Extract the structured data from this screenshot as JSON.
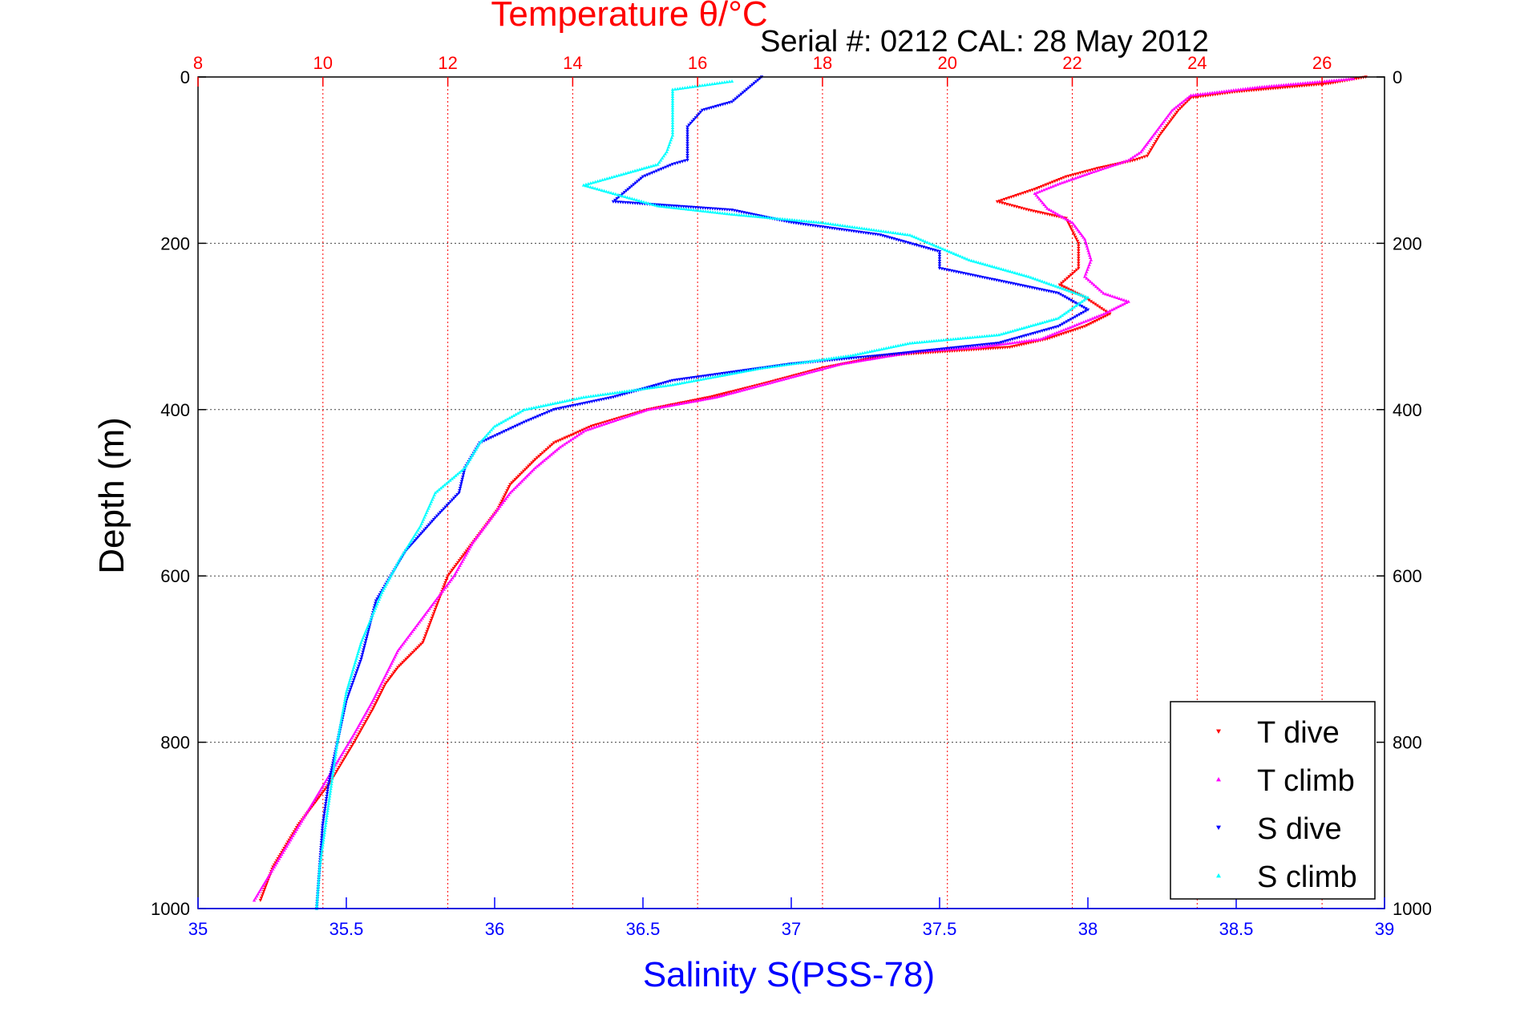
{
  "chart_data": {
    "type": "scatter",
    "title": "Temperature θ/°C",
    "subtitle": "Serial #: 0212  CAL: 28 May 2012",
    "ylabel": "Depth (m)",
    "xlabel_bottom": "Salinity S(PSS-78)",
    "xlabel_top": "Temperature θ/°C",
    "ylim": [
      0,
      1000
    ],
    "y_reversed": true,
    "xlim_bottom": [
      35,
      39
    ],
    "xlim_top": [
      8,
      27
    ],
    "yticks": [
      0,
      200,
      400,
      600,
      800,
      1000
    ],
    "xticks_bottom": [
      35,
      35.5,
      36,
      36.5,
      37,
      37.5,
      38,
      38.5,
      39
    ],
    "xticks_top": [
      8,
      10,
      12,
      14,
      16,
      18,
      20,
      22,
      24,
      26
    ],
    "grid": true,
    "legend_position": "bottom-right",
    "colors": {
      "temperature_axis": "#ff0000",
      "salinity_axis": "#0000ff",
      "t_dive": "#ff0000",
      "t_climb": "#ff00ff",
      "s_dive": "#0000ff",
      "s_climb": "#00ffff"
    },
    "series": [
      {
        "name": "T dive",
        "axis": "top",
        "marker": "triangle-down",
        "color": "#ff0000",
        "points": [
          [
            26.7,
            0
          ],
          [
            26.1,
            8
          ],
          [
            24.6,
            18
          ],
          [
            23.9,
            25
          ],
          [
            23.7,
            40
          ],
          [
            23.4,
            70
          ],
          [
            23.2,
            95
          ],
          [
            23.0,
            100
          ],
          [
            22.4,
            110
          ],
          [
            21.9,
            120
          ],
          [
            21.4,
            135
          ],
          [
            20.8,
            150
          ],
          [
            21.3,
            160
          ],
          [
            21.9,
            170
          ],
          [
            22.0,
            185
          ],
          [
            22.1,
            200
          ],
          [
            22.1,
            230
          ],
          [
            21.8,
            250
          ],
          [
            22.2,
            265
          ],
          [
            22.6,
            285
          ],
          [
            22.2,
            300
          ],
          [
            21.6,
            315
          ],
          [
            21.0,
            325
          ],
          [
            20.0,
            330
          ],
          [
            19.0,
            335
          ],
          [
            18.0,
            350
          ],
          [
            17.0,
            370
          ],
          [
            16.2,
            385
          ],
          [
            15.2,
            400
          ],
          [
            14.3,
            420
          ],
          [
            13.7,
            440
          ],
          [
            13.4,
            460
          ],
          [
            13.0,
            490
          ],
          [
            12.8,
            520
          ],
          [
            12.6,
            540
          ],
          [
            12.3,
            570
          ],
          [
            12.0,
            600
          ],
          [
            11.8,
            640
          ],
          [
            11.6,
            680
          ],
          [
            11.2,
            710
          ],
          [
            11.0,
            730
          ],
          [
            10.8,
            760
          ],
          [
            10.5,
            800
          ],
          [
            10.1,
            850
          ],
          [
            9.6,
            900
          ],
          [
            9.2,
            950
          ],
          [
            9.0,
            990
          ]
        ]
      },
      {
        "name": "T climb",
        "axis": "top",
        "marker": "triangle-up",
        "color": "#ff00ff",
        "points": [
          [
            26.5,
            2
          ],
          [
            25.0,
            12
          ],
          [
            23.9,
            22
          ],
          [
            23.6,
            40
          ],
          [
            23.3,
            70
          ],
          [
            23.1,
            90
          ],
          [
            22.9,
            100
          ],
          [
            22.3,
            115
          ],
          [
            21.8,
            128
          ],
          [
            21.4,
            140
          ],
          [
            21.6,
            158
          ],
          [
            22.0,
            175
          ],
          [
            22.2,
            195
          ],
          [
            22.3,
            220
          ],
          [
            22.2,
            240
          ],
          [
            22.5,
            260
          ],
          [
            22.9,
            270
          ],
          [
            22.5,
            285
          ],
          [
            22.0,
            300
          ],
          [
            21.5,
            315
          ],
          [
            20.5,
            325
          ],
          [
            19.5,
            330
          ],
          [
            18.3,
            345
          ],
          [
            17.3,
            365
          ],
          [
            16.3,
            385
          ],
          [
            15.2,
            400
          ],
          [
            14.2,
            425
          ],
          [
            13.8,
            445
          ],
          [
            13.4,
            470
          ],
          [
            13.0,
            500
          ],
          [
            12.6,
            540
          ],
          [
            12.4,
            560
          ],
          [
            12.1,
            600
          ],
          [
            11.8,
            630
          ],
          [
            11.5,
            660
          ],
          [
            11.2,
            690
          ],
          [
            11.0,
            720
          ],
          [
            10.8,
            750
          ],
          [
            10.5,
            790
          ],
          [
            10.1,
            840
          ],
          [
            9.7,
            890
          ],
          [
            9.3,
            940
          ],
          [
            8.9,
            990
          ]
        ]
      },
      {
        "name": "S dive",
        "axis": "bottom",
        "marker": "triangle-down",
        "color": "#0000ff",
        "points": [
          [
            36.9,
            0
          ],
          [
            36.85,
            15
          ],
          [
            36.8,
            30
          ],
          [
            36.7,
            40
          ],
          [
            36.65,
            60
          ],
          [
            36.65,
            100
          ],
          [
            36.6,
            105
          ],
          [
            36.5,
            120
          ],
          [
            36.45,
            135
          ],
          [
            36.4,
            150
          ],
          [
            36.8,
            160
          ],
          [
            37.0,
            175
          ],
          [
            37.3,
            190
          ],
          [
            37.5,
            210
          ],
          [
            37.5,
            230
          ],
          [
            37.9,
            260
          ],
          [
            38.0,
            280
          ],
          [
            37.9,
            300
          ],
          [
            37.7,
            320
          ],
          [
            37.3,
            335
          ],
          [
            37.0,
            345
          ],
          [
            36.8,
            355
          ],
          [
            36.6,
            365
          ],
          [
            36.4,
            385
          ],
          [
            36.2,
            400
          ],
          [
            36.1,
            415
          ],
          [
            35.95,
            440
          ],
          [
            35.9,
            470
          ],
          [
            35.88,
            500
          ],
          [
            35.8,
            530
          ],
          [
            35.7,
            570
          ],
          [
            35.6,
            630
          ],
          [
            35.55,
            700
          ],
          [
            35.5,
            750
          ],
          [
            35.47,
            800
          ],
          [
            35.44,
            850
          ],
          [
            35.42,
            900
          ],
          [
            35.41,
            950
          ],
          [
            35.4,
            1000
          ]
        ]
      },
      {
        "name": "S climb",
        "axis": "bottom",
        "marker": "triangle-up",
        "color": "#00ffff",
        "points": [
          [
            36.8,
            5
          ],
          [
            36.7,
            10
          ],
          [
            36.6,
            15
          ],
          [
            36.6,
            40
          ],
          [
            36.6,
            70
          ],
          [
            36.58,
            90
          ],
          [
            36.55,
            105
          ],
          [
            36.45,
            115
          ],
          [
            36.3,
            130
          ],
          [
            36.4,
            140
          ],
          [
            36.55,
            155
          ],
          [
            36.8,
            165
          ],
          [
            37.1,
            175
          ],
          [
            37.4,
            190
          ],
          [
            37.6,
            220
          ],
          [
            37.7,
            230
          ],
          [
            37.8,
            240
          ],
          [
            38.0,
            265
          ],
          [
            37.9,
            290
          ],
          [
            37.7,
            310
          ],
          [
            37.4,
            320
          ],
          [
            37.2,
            335
          ],
          [
            36.9,
            350
          ],
          [
            36.6,
            370
          ],
          [
            36.3,
            385
          ],
          [
            36.1,
            400
          ],
          [
            36.0,
            420
          ],
          [
            35.95,
            440
          ],
          [
            35.9,
            470
          ],
          [
            35.8,
            500
          ],
          [
            35.75,
            540
          ],
          [
            35.68,
            580
          ],
          [
            35.62,
            620
          ],
          [
            35.55,
            680
          ],
          [
            35.5,
            740
          ],
          [
            35.47,
            800
          ],
          [
            35.45,
            850
          ],
          [
            35.43,
            900
          ],
          [
            35.41,
            950
          ],
          [
            35.4,
            1000
          ]
        ]
      }
    ]
  }
}
